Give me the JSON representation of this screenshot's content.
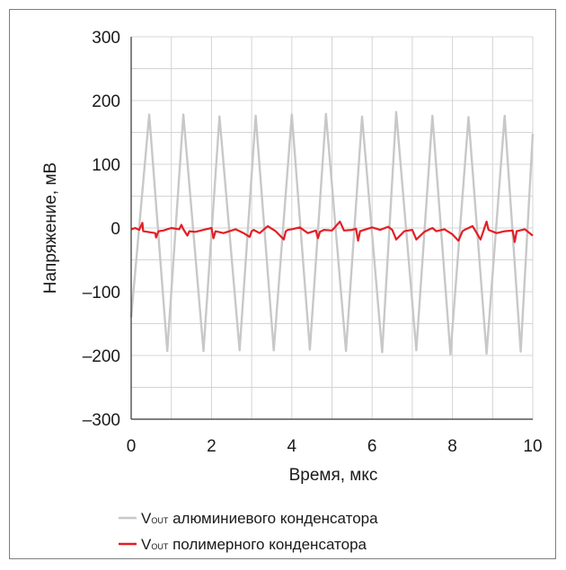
{
  "chart_data": {
    "type": "line",
    "xlabel": "Время, мкс",
    "ylabel": "Напряжение, мВ",
    "xlim": [
      0,
      10
    ],
    "ylim": [
      -300,
      300
    ],
    "x_ticks": [
      "0",
      "2",
      "4",
      "6",
      "8",
      "10"
    ],
    "y_ticks": [
      "300",
      "200",
      "100",
      "0",
      "–100",
      "–200",
      "–300"
    ],
    "grid": true,
    "legend_position": "bottom",
    "series": [
      {
        "name_prefix": "V",
        "name_sub": "OUT",
        "name_rest": " алюминиевого конденсатора",
        "color": "#c8c8c8",
        "x": [
          0,
          0.45,
          0.9,
          1.3,
          1.8,
          2.2,
          2.7,
          3.1,
          3.55,
          4.0,
          4.45,
          4.85,
          5.35,
          5.75,
          6.25,
          6.6,
          7.1,
          7.5,
          7.95,
          8.4,
          8.85,
          9.3,
          9.7,
          10
        ],
        "y": [
          -140,
          178,
          -193,
          178,
          -193,
          175,
          -192,
          176,
          -192,
          178,
          -191,
          179,
          -193,
          175,
          -195,
          182,
          -192,
          176,
          -198,
          174,
          -197,
          176,
          -194,
          148
        ]
      },
      {
        "name_prefix": "V",
        "name_sub": "OUT",
        "name_rest": " полимерного конденсатора",
        "color": "#e31e24",
        "x": [
          0,
          0.1,
          0.2,
          0.28,
          0.3,
          0.6,
          0.62,
          0.68,
          0.8,
          1.0,
          1.2,
          1.25,
          1.3,
          1.4,
          1.45,
          1.6,
          1.8,
          2.0,
          2.05,
          2.1,
          2.3,
          2.5,
          2.6,
          2.8,
          2.95,
          3.0,
          3.05,
          3.2,
          3.4,
          3.6,
          3.8,
          3.85,
          3.9,
          4.0,
          4.2,
          4.4,
          4.6,
          4.65,
          4.7,
          4.8,
          5.0,
          5.2,
          5.3,
          5.5,
          5.6,
          5.65,
          5.7,
          5.85,
          6.0,
          6.2,
          6.4,
          6.5,
          6.6,
          6.8,
          7.0,
          7.1,
          7.3,
          7.5,
          7.6,
          7.8,
          8.0,
          8.15,
          8.25,
          8.3,
          8.5,
          8.7,
          8.85,
          8.9,
          9.1,
          9.3,
          9.5,
          9.55,
          9.6,
          9.8,
          10
        ],
        "y": [
          -2,
          0,
          -3,
          8,
          -5,
          -8,
          -15,
          -5,
          -4,
          0,
          -2,
          5,
          -2,
          -12,
          -5,
          -6,
          -3,
          0,
          -16,
          -5,
          -8,
          -4,
          -2,
          -8,
          -14,
          -5,
          -3,
          -8,
          3,
          -5,
          -18,
          -5,
          -3,
          -2,
          1,
          -8,
          -4,
          -16,
          -6,
          -3,
          -4,
          10,
          -4,
          -3,
          -1,
          -20,
          -5,
          -2,
          1,
          -3,
          2,
          -3,
          -18,
          -5,
          -3,
          -18,
          -6,
          0,
          -5,
          -2,
          -10,
          -20,
          -5,
          -3,
          3,
          -18,
          10,
          -3,
          -8,
          -5,
          -4,
          -22,
          -5,
          -2,
          -12
        ]
      }
    ]
  }
}
